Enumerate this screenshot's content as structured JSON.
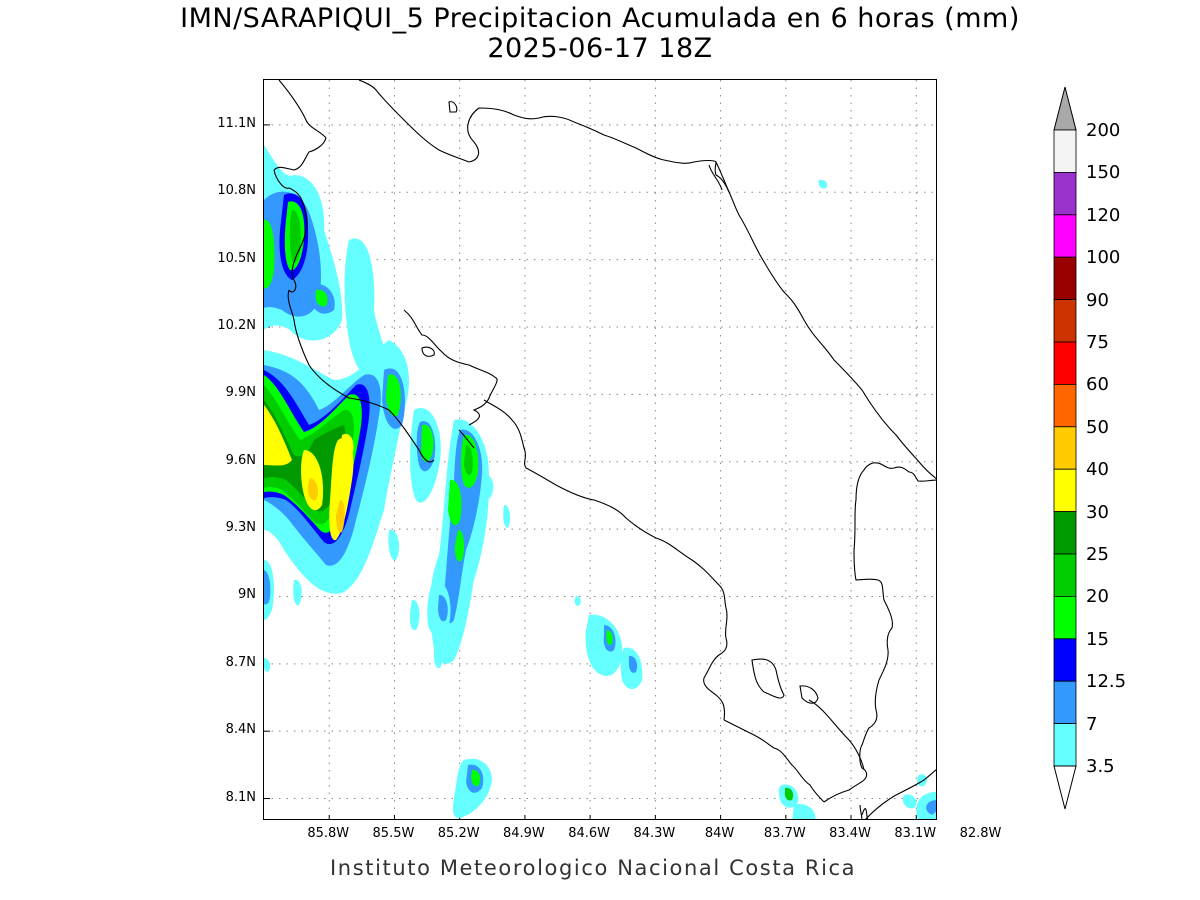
{
  "title": {
    "line1": "IMN/SARAPIQUI_5 Precipitacion Acumulada en 6 horas (mm)",
    "line2": "2025-06-17 18Z"
  },
  "footer": "Instituto Meteorologico Nacional Costa Rica",
  "map": {
    "lon_range": [
      -86.1,
      -83.0
    ],
    "lat_range": [
      8.0,
      11.3
    ],
    "grid": "dotted",
    "y_ticks": [
      "11.1N",
      "10.8N",
      "10.5N",
      "10.2N",
      "9.9N",
      "9.6N",
      "9.3N",
      "9N",
      "8.7N",
      "8.4N",
      "8.1N"
    ],
    "y_tick_values": [
      11.1,
      10.8,
      10.5,
      10.2,
      9.9,
      9.6,
      9.3,
      9.0,
      8.7,
      8.4,
      8.1
    ],
    "x_ticks": [
      "85.8W",
      "85.5W",
      "85.2W",
      "84.9W",
      "84.6W",
      "84.3W",
      "84W",
      "83.7W",
      "83.4W",
      "83.1W",
      "82.8W"
    ],
    "x_tick_values": [
      -85.8,
      -85.5,
      -85.2,
      -84.9,
      -84.6,
      -84.3,
      -84.0,
      -83.7,
      -83.4,
      -83.1,
      -82.8
    ]
  },
  "legend": {
    "labels": [
      "200",
      "150",
      "120",
      "100",
      "90",
      "75",
      "60",
      "50",
      "40",
      "30",
      "25",
      "20",
      "15",
      "12.5",
      "7",
      "3.5"
    ],
    "colors": [
      "#f4f4f4",
      "#9933cc",
      "#ff00ff",
      "#990000",
      "#cc3300",
      "#ff0000",
      "#ff6600",
      "#ffcc00",
      "#ffff00",
      "#009900",
      "#00cc00",
      "#00ff00",
      "#0000ff",
      "#3399ff",
      "#66ffff"
    ],
    "over_color": "#a9a9a9",
    "under_color": "#ffffff"
  }
}
